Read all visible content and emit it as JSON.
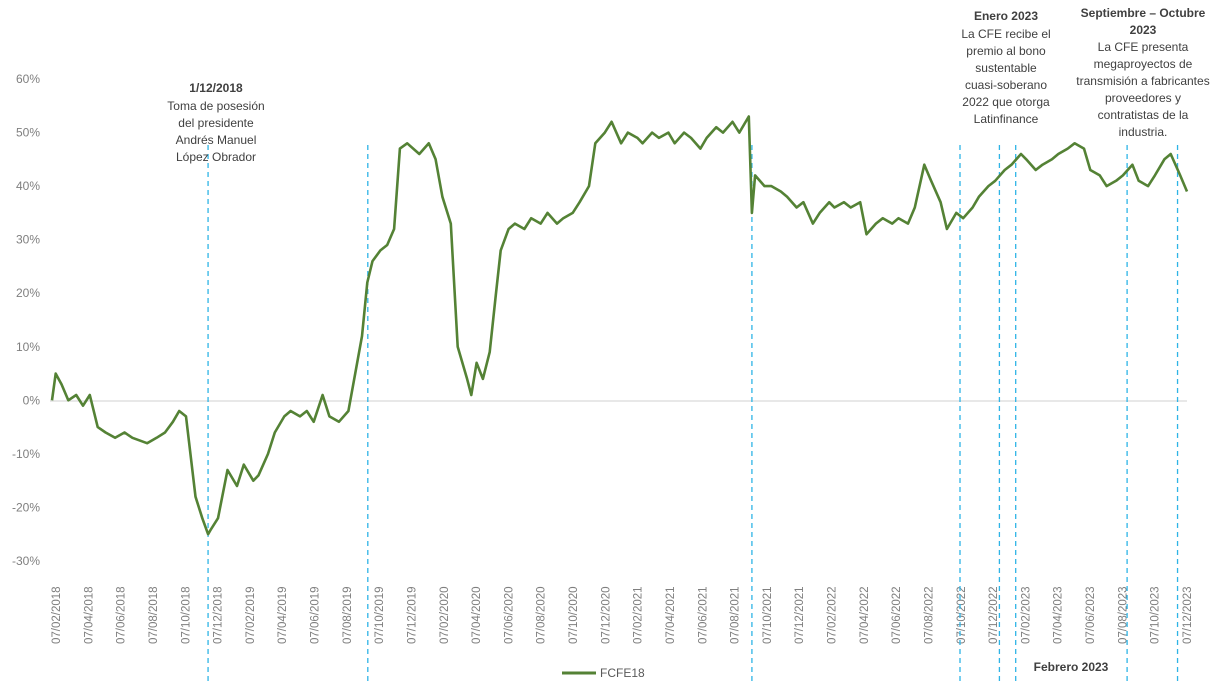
{
  "chart_data": {
    "type": "line",
    "y_tick_labels": [
      "60%",
      "50%",
      "40%",
      "30%",
      "20%",
      "10%",
      "0%",
      "-10%",
      "-20%",
      "-30%"
    ],
    "ylim": [
      -30,
      60
    ],
    "x_tick_labels": [
      "07/02/2018",
      "07/04/2018",
      "07/06/2018",
      "07/08/2018",
      "07/10/2018",
      "07/12/2018",
      "07/02/2019",
      "07/04/2019",
      "07/06/2019",
      "07/08/2019",
      "07/10/2019",
      "07/12/2019",
      "07/02/2020",
      "07/04/2020",
      "07/06/2020",
      "07/08/2020",
      "07/10/2020",
      "07/12/2020",
      "07/02/2021",
      "07/04/2021",
      "07/06/2021",
      "07/08/2021",
      "07/10/2021",
      "07/12/2021",
      "07/02/2022",
      "07/04/2022",
      "07/06/2022",
      "07/08/2022",
      "07/10/2022",
      "07/12/2022",
      "07/02/2023",
      "07/04/2023",
      "07/06/2023",
      "07/08/2023",
      "07/10/2023",
      "07/12/2023"
    ],
    "xlim": [
      "2018-02-07",
      "2024-01-07"
    ],
    "grid": false,
    "legend_position": "bottom",
    "series": [
      {
        "name": "FCFE18",
        "color": "#548235",
        "points": [
          [
            "2018-02-07",
            0
          ],
          [
            "2018-02-14",
            5
          ],
          [
            "2018-02-25",
            3
          ],
          [
            "2018-03-10",
            0
          ],
          [
            "2018-03-25",
            1
          ],
          [
            "2018-04-07",
            -1
          ],
          [
            "2018-04-20",
            1
          ],
          [
            "2018-05-05",
            -5
          ],
          [
            "2018-05-20",
            -6
          ],
          [
            "2018-06-07",
            -7
          ],
          [
            "2018-06-25",
            -6
          ],
          [
            "2018-07-10",
            -7
          ],
          [
            "2018-08-07",
            -8
          ],
          [
            "2018-08-25",
            -7
          ],
          [
            "2018-09-10",
            -6
          ],
          [
            "2018-09-25",
            -4
          ],
          [
            "2018-10-07",
            -2
          ],
          [
            "2018-10-20",
            -3
          ],
          [
            "2018-11-07",
            -18
          ],
          [
            "2018-11-20",
            -22
          ],
          [
            "2018-12-01",
            -25
          ],
          [
            "2018-12-07",
            -24
          ],
          [
            "2018-12-20",
            -22
          ],
          [
            "2019-01-07",
            -13
          ],
          [
            "2019-01-25",
            -16
          ],
          [
            "2019-02-07",
            -12
          ],
          [
            "2019-02-25",
            -15
          ],
          [
            "2019-03-07",
            -14
          ],
          [
            "2019-03-25",
            -10
          ],
          [
            "2019-04-07",
            -6
          ],
          [
            "2019-04-25",
            -3
          ],
          [
            "2019-05-07",
            -2
          ],
          [
            "2019-05-25",
            -3
          ],
          [
            "2019-06-07",
            -2
          ],
          [
            "2019-06-20",
            -4
          ],
          [
            "2019-07-07",
            1
          ],
          [
            "2019-07-20",
            -3
          ],
          [
            "2019-08-07",
            -4
          ],
          [
            "2019-08-25",
            -2
          ],
          [
            "2019-09-07",
            5
          ],
          [
            "2019-09-20",
            12
          ],
          [
            "2019-09-30",
            22
          ],
          [
            "2019-10-10",
            26
          ],
          [
            "2019-10-25",
            28
          ],
          [
            "2019-11-07",
            29
          ],
          [
            "2019-11-20",
            32
          ],
          [
            "2019-12-01",
            47
          ],
          [
            "2019-12-15",
            48
          ],
          [
            "2020-01-07",
            46
          ],
          [
            "2020-01-25",
            48
          ],
          [
            "2020-02-07",
            45
          ],
          [
            "2020-02-20",
            38
          ],
          [
            "2020-03-07",
            33
          ],
          [
            "2020-03-20",
            10
          ],
          [
            "2020-04-07",
            4
          ],
          [
            "2020-04-15",
            1
          ],
          [
            "2020-04-25",
            7
          ],
          [
            "2020-05-07",
            4
          ],
          [
            "2020-05-20",
            9
          ],
          [
            "2020-06-01",
            20
          ],
          [
            "2020-06-10",
            28
          ],
          [
            "2020-06-25",
            32
          ],
          [
            "2020-07-07",
            33
          ],
          [
            "2020-07-25",
            32
          ],
          [
            "2020-08-07",
            34
          ],
          [
            "2020-08-25",
            33
          ],
          [
            "2020-09-07",
            35
          ],
          [
            "2020-09-25",
            33
          ],
          [
            "2020-10-07",
            34
          ],
          [
            "2020-10-25",
            35
          ],
          [
            "2020-11-07",
            37
          ],
          [
            "2020-11-25",
            40
          ],
          [
            "2020-12-07",
            48
          ],
          [
            "2020-12-25",
            50
          ],
          [
            "2021-01-07",
            52
          ],
          [
            "2021-01-25",
            48
          ],
          [
            "2021-02-07",
            50
          ],
          [
            "2021-02-25",
            49
          ],
          [
            "2021-03-07",
            48
          ],
          [
            "2021-03-25",
            50
          ],
          [
            "2021-04-07",
            49
          ],
          [
            "2021-04-25",
            50
          ],
          [
            "2021-05-07",
            48
          ],
          [
            "2021-05-25",
            50
          ],
          [
            "2021-06-07",
            49
          ],
          [
            "2021-06-25",
            47
          ],
          [
            "2021-07-07",
            49
          ],
          [
            "2021-07-25",
            51
          ],
          [
            "2021-08-07",
            50
          ],
          [
            "2021-08-25",
            52
          ],
          [
            "2021-09-07",
            50
          ],
          [
            "2021-09-25",
            53
          ],
          [
            "2021-10-01",
            35
          ],
          [
            "2021-10-07",
            42
          ],
          [
            "2021-10-25",
            40
          ],
          [
            "2021-11-07",
            40
          ],
          [
            "2021-11-25",
            39
          ],
          [
            "2021-12-07",
            38
          ],
          [
            "2021-12-25",
            36
          ],
          [
            "2022-01-07",
            37
          ],
          [
            "2022-01-25",
            33
          ],
          [
            "2022-02-07",
            35
          ],
          [
            "2022-02-25",
            37
          ],
          [
            "2022-03-07",
            36
          ],
          [
            "2022-03-25",
            37
          ],
          [
            "2022-04-07",
            36
          ],
          [
            "2022-04-25",
            37
          ],
          [
            "2022-05-07",
            31
          ],
          [
            "2022-05-25",
            33
          ],
          [
            "2022-06-07",
            34
          ],
          [
            "2022-06-25",
            33
          ],
          [
            "2022-07-07",
            34
          ],
          [
            "2022-07-25",
            33
          ],
          [
            "2022-08-07",
            36
          ],
          [
            "2022-08-25",
            44
          ],
          [
            "2022-09-07",
            41
          ],
          [
            "2022-09-25",
            37
          ],
          [
            "2022-10-07",
            32
          ],
          [
            "2022-10-25",
            35
          ],
          [
            "2022-11-07",
            34
          ],
          [
            "2022-11-25",
            36
          ],
          [
            "2022-12-07",
            38
          ],
          [
            "2022-12-25",
            40
          ],
          [
            "2023-01-07",
            41
          ],
          [
            "2023-01-25",
            43
          ],
          [
            "2023-02-07",
            44
          ],
          [
            "2023-02-25",
            46
          ],
          [
            "2023-03-07",
            45
          ],
          [
            "2023-03-25",
            43
          ],
          [
            "2023-04-07",
            44
          ],
          [
            "2023-04-25",
            45
          ],
          [
            "2023-05-07",
            46
          ],
          [
            "2023-05-25",
            47
          ],
          [
            "2023-06-07",
            48
          ],
          [
            "2023-06-25",
            47
          ],
          [
            "2023-07-07",
            43
          ],
          [
            "2023-07-25",
            42
          ],
          [
            "2023-08-07",
            40
          ],
          [
            "2023-08-25",
            41
          ],
          [
            "2023-09-07",
            42
          ],
          [
            "2023-09-25",
            44
          ],
          [
            "2023-10-07",
            41
          ],
          [
            "2023-10-25",
            40
          ],
          [
            "2023-11-07",
            42
          ],
          [
            "2023-11-25",
            45
          ],
          [
            "2023-12-07",
            46
          ],
          [
            "2023-12-25",
            42
          ],
          [
            "2024-01-07",
            39
          ]
        ]
      }
    ],
    "event_lines": [
      {
        "date": "2018-12-01"
      },
      {
        "date": "2019-10-01"
      },
      {
        "date": "2021-10-01"
      },
      {
        "date": "2022-11-01"
      },
      {
        "date": "2023-01-15"
      },
      {
        "date": "2023-02-15"
      },
      {
        "date": "2023-09-15"
      },
      {
        "date": "2023-12-20"
      }
    ],
    "annotations": [
      {
        "title": "1/12/2018",
        "lines": [
          "Toma de posesión",
          "del presidente",
          "Andrés Manuel",
          "López Obrador"
        ]
      },
      {
        "title": "Enero 2023",
        "lines": [
          "La CFE recibe el",
          "premio al bono",
          "sustentable",
          "cuasi-soberano",
          "2022 que otorga",
          "Latinfinance"
        ]
      },
      {
        "title": "Septiembre – Octubre",
        "lines": [
          "2023",
          "La CFE presenta",
          "megaproyectos de",
          "transmisión a fabricantes",
          "proveedores  y",
          "contratistas de la",
          "industria."
        ]
      },
      {
        "title": "Febrero 2023",
        "lines": []
      }
    ]
  }
}
